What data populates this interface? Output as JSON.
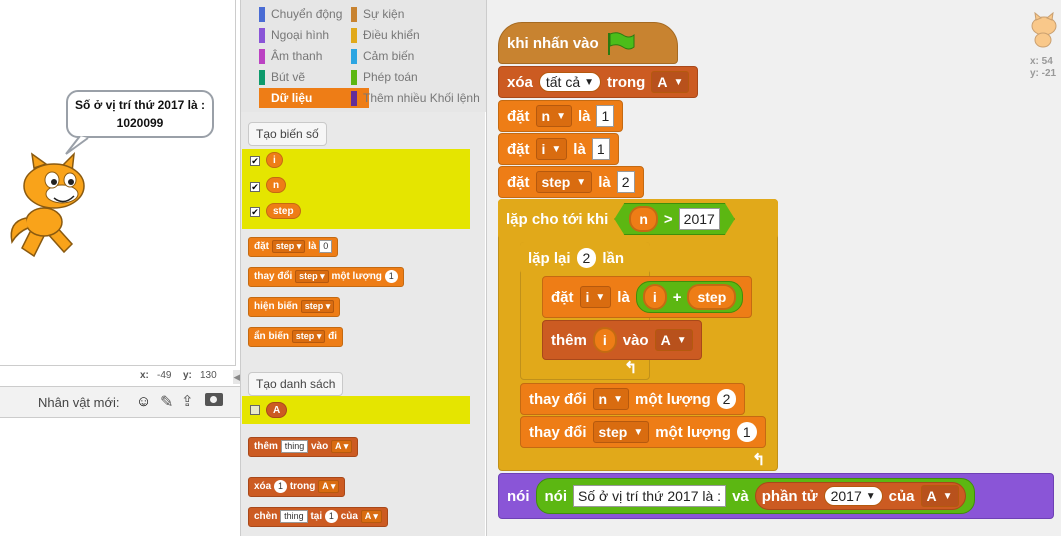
{
  "stage": {
    "speech": "Số ở vị trí thứ 2017 là : 1020099",
    "coords": {
      "x_label": "x:",
      "x_value": "-49",
      "y_label": "y:",
      "y_value": "130"
    }
  },
  "sprite_bar": {
    "label": "Nhân vật mới:"
  },
  "categories": [
    {
      "label": "Chuyển động",
      "color": "#4a6cd4"
    },
    {
      "label": "Sự kiện",
      "color": "#c88330"
    },
    {
      "label": "Ngoại hình",
      "color": "#8a55d7"
    },
    {
      "label": "Điều khiển",
      "color": "#e1a91a"
    },
    {
      "label": "Âm thanh",
      "color": "#bb42c3"
    },
    {
      "label": "Cảm biến",
      "color": "#2ca5e2"
    },
    {
      "label": "Bút vẽ",
      "color": "#0e9a6c"
    },
    {
      "label": "Phép toán",
      "color": "#5cb712"
    },
    {
      "label": "Dữ liệu",
      "color": "#ee7d16"
    },
    {
      "label": "Thêm nhiều Khối lệnh",
      "color": "#632d99"
    }
  ],
  "palette": {
    "make_var_button": "Tạo biến số",
    "variables": [
      "i",
      "n",
      "step"
    ],
    "set_block": {
      "verb": "đặt",
      "var": "step",
      "mid": "là",
      "value": "0"
    },
    "change_block": {
      "verb": "thay đổi",
      "var": "step",
      "mid": "một lượng",
      "value": "1"
    },
    "show_block": {
      "verb": "hiện biến",
      "var": "step"
    },
    "hide_block": {
      "verb": "ẩn biến",
      "var": "step",
      "tail": "đi"
    },
    "make_list_button": "Tạo danh sách",
    "list": "A",
    "add_block": {
      "verb": "thêm",
      "value": "thing",
      "mid": "vào",
      "list": "A"
    },
    "delete_block": {
      "verb": "xóa",
      "value": "1",
      "mid": "trong",
      "list": "A"
    },
    "insert_block": {
      "verb": "chèn",
      "value": "thing",
      "mid": "tại",
      "index": "1",
      "mid2": "của",
      "list": "A"
    }
  },
  "script": {
    "hat": "khi nhấn vào",
    "delete_all": {
      "verb": "xóa",
      "what": "tất cả",
      "mid": "trong",
      "list": "A"
    },
    "set_n": {
      "verb": "đặt",
      "var": "n",
      "mid": "là",
      "value": "1"
    },
    "set_i": {
      "verb": "đặt",
      "var": "i",
      "mid": "là",
      "value": "1"
    },
    "set_step": {
      "verb": "đặt",
      "var": "step",
      "mid": "là",
      "value": "2"
    },
    "repeat_until": {
      "label": "lặp cho tới khi",
      "var": "n",
      "op": ">",
      "value": "2017"
    },
    "repeat": {
      "label": "lặp lại",
      "value": "2",
      "tail": "lần"
    },
    "set_i_sum": {
      "verb": "đặt",
      "var": "i",
      "mid": "là",
      "a": "i",
      "op": "+",
      "b": "step"
    },
    "add_i": {
      "verb": "thêm",
      "var": "i",
      "mid": "vào",
      "list": "A"
    },
    "change_n": {
      "verb": "thay đổi",
      "var": "n",
      "mid": "một lượng",
      "value": "2"
    },
    "change_step": {
      "verb": "thay đổi",
      "var": "step",
      "mid": "một lượng",
      "value": "1"
    },
    "say": {
      "outer": "nói",
      "inner": "nói",
      "text": "Số ở vị trí thứ 2017 là :",
      "join": "và",
      "item": "phần tử",
      "index": "2017",
      "of": "của",
      "list": "A"
    }
  },
  "corner": {
    "x": "x: 54",
    "y": "y: -21"
  }
}
